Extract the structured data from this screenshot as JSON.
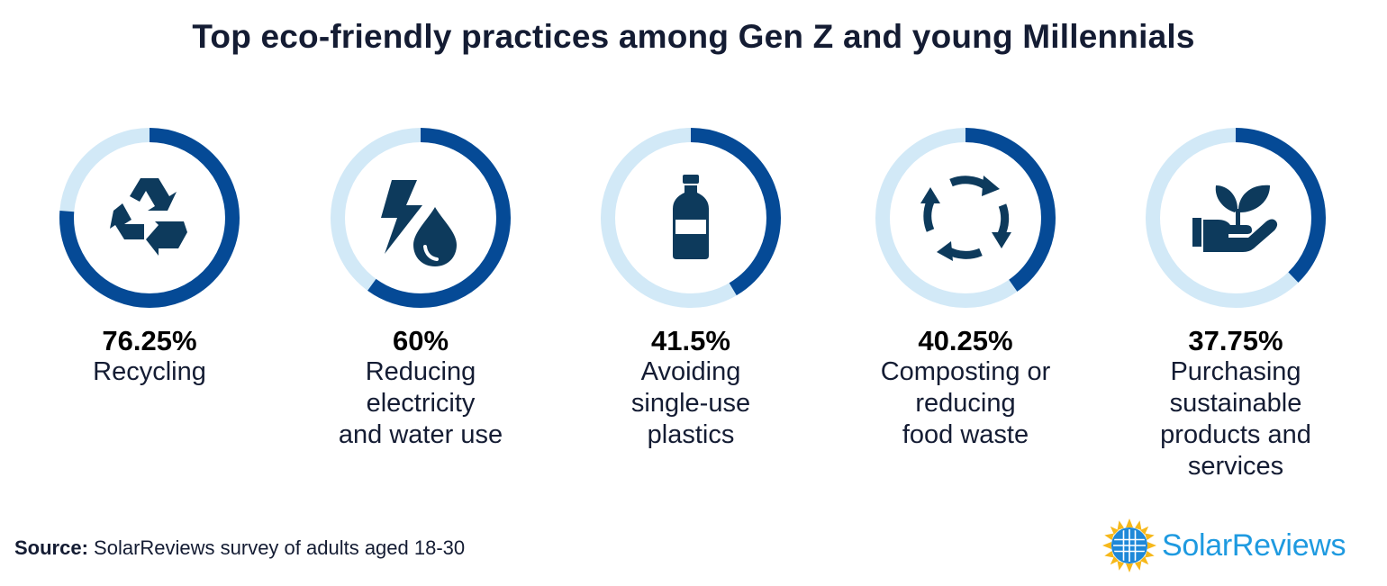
{
  "title": "Top eco-friendly practices among Gen Z and young Millennials",
  "chart_data": {
    "type": "pie",
    "variant": "donut-set",
    "unit": "%",
    "max": 100,
    "colors": {
      "filled": "#054a96",
      "remaining": "#d2e9f7",
      "icon": "#0d3a5c"
    },
    "items": [
      {
        "value": 76.25,
        "value_label": "76.25%",
        "label": "Recycling",
        "icon": "recycle-icon"
      },
      {
        "value": 60,
        "value_label": "60%",
        "label": "Reducing\nelectricity\nand water use",
        "icon": "lightning-water-drop-icon"
      },
      {
        "value": 41.5,
        "value_label": "41.5%",
        "label": "Avoiding\nsingle-use\nplastics",
        "icon": "plastic-bottle-icon"
      },
      {
        "value": 40.25,
        "value_label": "40.25%",
        "label": "Composting or\nreducing\nfood waste",
        "icon": "circular-arrows-icon"
      },
      {
        "value": 37.75,
        "value_label": "37.75%",
        "label": "Purchasing\nsustainable\nproducts and\nservices",
        "icon": "hand-sprout-icon"
      }
    ]
  },
  "source": {
    "prefix": "Source:",
    "text": " SolarReviews survey of adults aged 18-30"
  },
  "logo": {
    "text": "SolarReviews",
    "icon": "sun-logo-icon"
  }
}
